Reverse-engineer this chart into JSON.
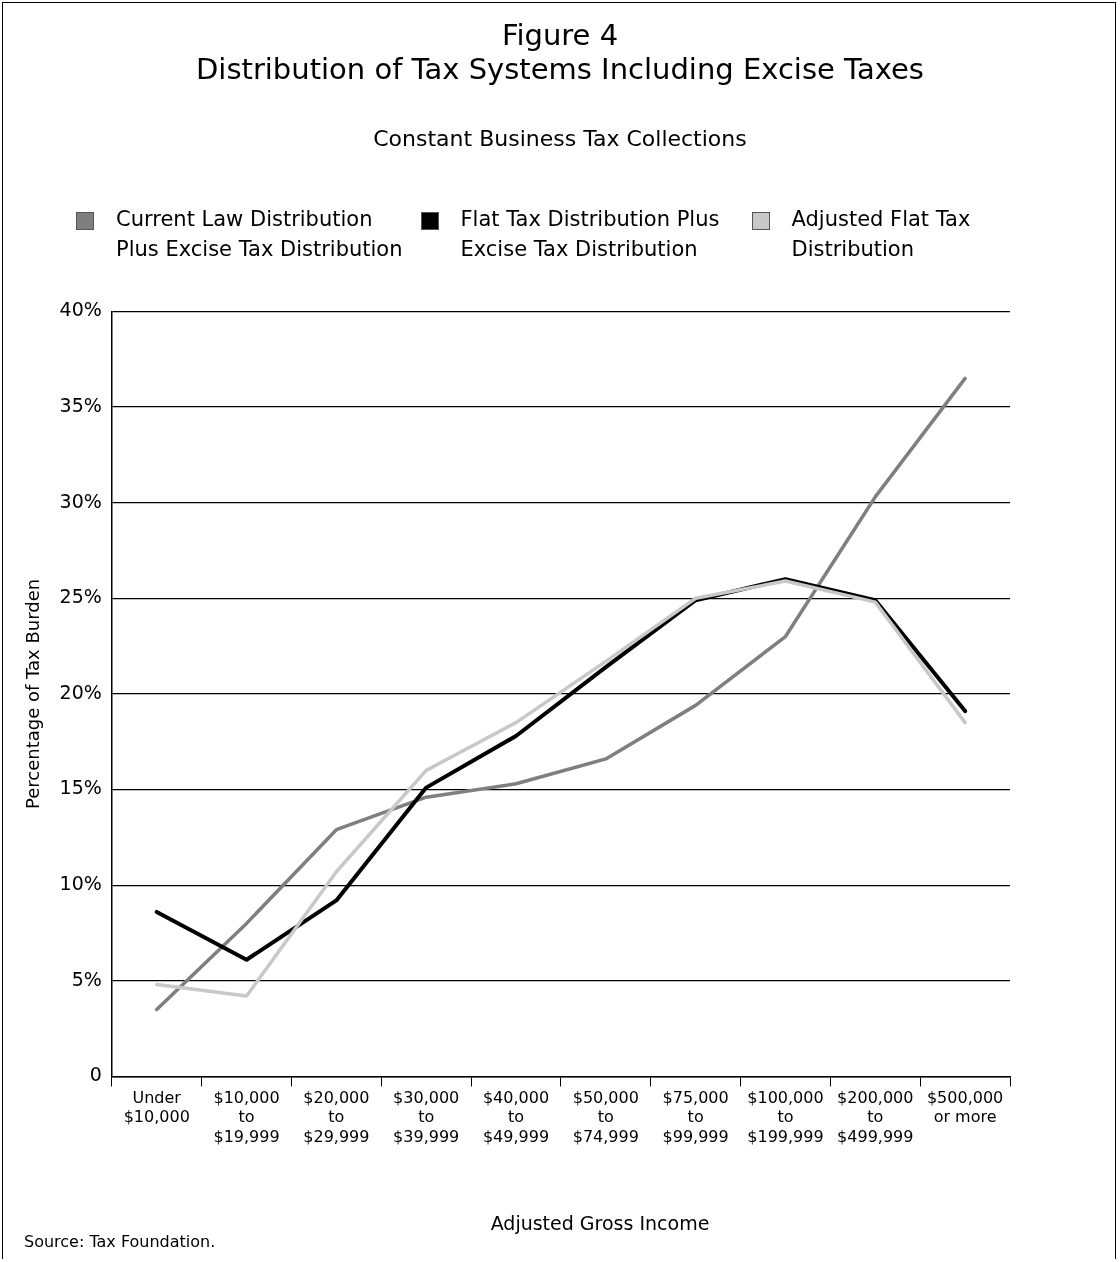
{
  "chart_data": {
    "type": "line",
    "title": "Figure 4\nDistribution of Tax Systems Including Excise Taxes",
    "subtitle": "Constant Business Tax Collections",
    "xlabel": "Adjusted Gross Income",
    "ylabel": "Percentage of Tax Burden",
    "categories": [
      "Under $10,000",
      "$10,000 to $19,999",
      "$20,000 to $29,999",
      "$30,000 to $39,999",
      "$40,000 to $49,999",
      "$50,000 to $74,999",
      "$75,000 to $99,999",
      "$100,000 to $199,999",
      "$200,000 to $499,999",
      "$500,000 or more"
    ],
    "series": [
      {
        "name": "Current Law Distribution Plus Excise Tax Distribution",
        "color": "#7f7f7f",
        "values": [
          3.5,
          8.0,
          12.9,
          14.6,
          15.3,
          16.6,
          19.4,
          23.0,
          30.3,
          36.5
        ]
      },
      {
        "name": "Flat Tax Distribution Plus Excise Tax Distribution",
        "color": "#000000",
        "values": [
          8.6,
          6.1,
          9.2,
          15.1,
          17.8,
          21.4,
          24.9,
          26.0,
          24.9,
          19.1
        ]
      },
      {
        "name": "Adjusted Flat Tax Distribution",
        "color": "#c8c8c8",
        "values": [
          4.8,
          4.2,
          10.7,
          16.0,
          18.5,
          21.7,
          25.0,
          25.9,
          24.8,
          18.5
        ]
      }
    ],
    "ylim": [
      0,
      40
    ],
    "yticks": [
      0,
      {
        "value": 5,
        "label": "5%"
      },
      {
        "value": 10,
        "label": "10%"
      },
      {
        "value": 15,
        "label": "15%"
      },
      {
        "value": 20,
        "label": "20%"
      },
      {
        "value": 25,
        "label": "25%"
      },
      {
        "value": 30,
        "label": "30%"
      },
      {
        "value": 35,
        "label": "35%"
      },
      {
        "value": 40,
        "label": "40%"
      }
    ],
    "grid": "y",
    "legend": "top",
    "marker": "none",
    "line_style": "solid",
    "annotations": [
      "Source: Tax Foundation."
    ]
  }
}
